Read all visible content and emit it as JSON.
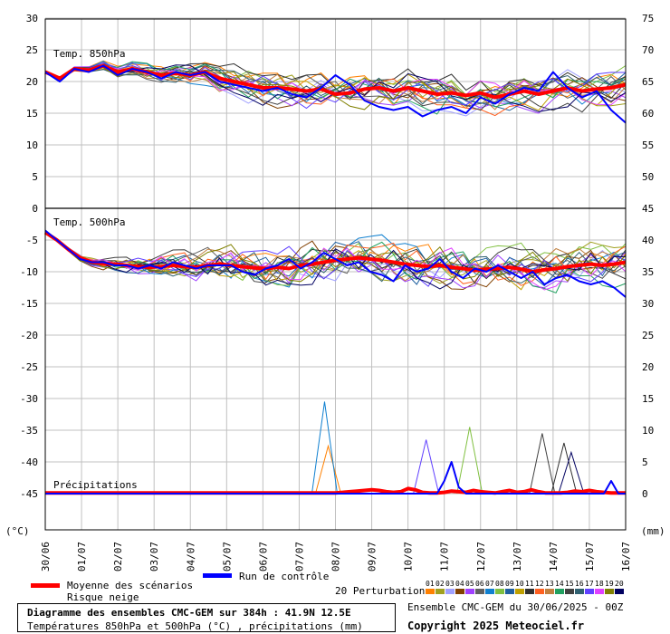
{
  "chart_data": {
    "type": "line",
    "title": "Diagramme des ensembles CMC-GEM sur 384h : 41.9N 12.5E",
    "subtitle": "Températures 850hPa et 500hPa (°C) , précipitations (mm)",
    "run_info": "Ensemble CMC-GEM du 30/06/2025 - 00Z",
    "copyright": "Copyright 2025 Meteociel.fr",
    "left_unit": "(°C)",
    "right_unit": "(mm)",
    "left_ticks": [
      30,
      25,
      20,
      15,
      10,
      5,
      0,
      -5,
      -10,
      -15,
      -20,
      -25,
      -30,
      -35,
      -40,
      -45
    ],
    "right_ticks_upper": [
      75,
      70,
      65,
      60,
      55,
      50,
      45
    ],
    "right_ticks_lower": [
      40,
      35,
      30,
      25,
      20,
      15,
      10,
      5,
      0
    ],
    "x_labels": [
      "30/06",
      "01/07",
      "02/07",
      "03/07",
      "04/07",
      "05/07",
      "06/07",
      "07/07",
      "08/07",
      "09/07",
      "10/07",
      "11/07",
      "12/07",
      "13/07",
      "14/07",
      "15/07",
      "16/07"
    ],
    "panel_labels": [
      "Temp. 850hPa",
      "Temp. 500hPa",
      "Précipitations"
    ],
    "legend": {
      "mean": "Moyenne des scénarios",
      "snow": "Risque neige",
      "control": "Run de contrôle",
      "perturbations": "20 Perturbations",
      "pert_numbers": [
        "01",
        "02",
        "03",
        "04",
        "05",
        "06",
        "07",
        "08",
        "09",
        "10",
        "11",
        "12",
        "13",
        "14",
        "15",
        "16",
        "17",
        "18",
        "19",
        "20"
      ]
    },
    "colors": {
      "mean": "#ff0000",
      "control": "#0000ff",
      "grid": "#c0c0c0",
      "perturbations": [
        "#ff8000",
        "#a0a020",
        "#a0a0ff",
        "#804000",
        "#a040ff",
        "#606060",
        "#1080d0",
        "#80c040",
        "#2060a0",
        "#c0a000",
        "#303030",
        "#ff6020",
        "#c08040",
        "#20a060",
        "#404040",
        "#306070",
        "#6040ff",
        "#e040ff",
        "#808000",
        "#000060"
      ]
    },
    "series": [
      {
        "name": "Moyenne des scénarios",
        "panel": "t850",
        "values": [
          21.5,
          20.5,
          22.0,
          21.8,
          22.5,
          21.5,
          22.0,
          21.5,
          21.0,
          21.3,
          21.0,
          21.5,
          20.5,
          20.0,
          19.5,
          19.0,
          19.0,
          18.8,
          18.5,
          18.8,
          18.0,
          18.2,
          18.8,
          19.0,
          18.5,
          19.0,
          18.5,
          18.0,
          18.2,
          17.8,
          18.2,
          17.5,
          18.0,
          18.5,
          18.0,
          18.5,
          19.0,
          18.5,
          18.8,
          19.0,
          19.5
        ]
      },
      {
        "name": "Run de contrôle",
        "panel": "t850",
        "values": [
          21.5,
          20.0,
          22.0,
          21.5,
          22.5,
          21.0,
          22.0,
          21.5,
          20.5,
          21.5,
          21.0,
          21.5,
          20.0,
          19.5,
          19.0,
          18.5,
          19.0,
          18.0,
          17.5,
          19.0,
          21.0,
          19.5,
          17.0,
          16.0,
          15.5,
          16.0,
          14.5,
          15.5,
          16.0,
          15.0,
          17.5,
          16.5,
          18.0,
          19.0,
          18.5,
          21.5,
          19.0,
          17.5,
          18.5,
          15.5,
          13.5
        ]
      },
      {
        "name": "Moyenne des scénarios",
        "panel": "t500",
        "values": [
          -3.8,
          -5.0,
          -6.5,
          -7.8,
          -8.5,
          -8.7,
          -8.8,
          -9.0,
          -9.2,
          -9.3,
          -9.2,
          -9.0,
          -9.2,
          -9.3,
          -9.0,
          -8.8,
          -9.0,
          -9.2,
          -9.4,
          -9.5,
          -9.3,
          -9.5,
          -9.0,
          -8.8,
          -8.5,
          -8.2,
          -8.0,
          -7.8,
          -8.0,
          -8.2,
          -8.5,
          -8.8,
          -9.0,
          -9.2,
          -9.0,
          -9.3,
          -9.5,
          -9.8,
          -9.6,
          -9.5,
          -9.3,
          -9.6,
          -10.0,
          -9.7,
          -9.5,
          -9.2,
          -9.0,
          -8.8,
          -9.0,
          -8.8,
          -8.5
        ]
      },
      {
        "name": "Run de contrôle",
        "panel": "t500",
        "values": [
          -3.5,
          -5.0,
          -6.5,
          -8.0,
          -8.5,
          -8.5,
          -9.0,
          -9.0,
          -9.5,
          -9.0,
          -9.5,
          -8.5,
          -9.0,
          -9.5,
          -9.0,
          -9.0,
          -9.0,
          -10.0,
          -10.5,
          -9.5,
          -9.0,
          -8.0,
          -9.5,
          -8.5,
          -7.0,
          -8.0,
          -9.0,
          -8.5,
          -10.0,
          -10.5,
          -11.5,
          -9.0,
          -10.0,
          -9.5,
          -8.0,
          -10.0,
          -11.0,
          -9.5,
          -10.0,
          -9.0,
          -10.0,
          -11.0,
          -10.0,
          -12.0,
          -11.0,
          -10.5,
          -11.5,
          -12.0,
          -11.5,
          -12.5,
          -14.0
        ]
      },
      {
        "name": "Moyenne des scénarios",
        "panel": "precip",
        "values": [
          0.1,
          0.1,
          0.1,
          0.1,
          0.1,
          0.1,
          0.1,
          0.1,
          0.1,
          0.1,
          0.1,
          0.1,
          0.1,
          0.1,
          0.1,
          0.1,
          0.1,
          0.1,
          0.1,
          0.1,
          0.1,
          0.1,
          0.1,
          0.1,
          0.1,
          0.1,
          0.1,
          0.1,
          0.1,
          0.1,
          0.1,
          0.1,
          0.1,
          0.1,
          0.1,
          0.1,
          0.1,
          0.1,
          0.1,
          0.1,
          0.1,
          0.2,
          0.3,
          0.4,
          0.5,
          0.6,
          0.5,
          0.3,
          0.2,
          0.3,
          0.8,
          0.6,
          0.2,
          0.1,
          0.1,
          0.2,
          0.4,
          0.3,
          0.2,
          0.5,
          0.3,
          0.2,
          0.1,
          0.3,
          0.5,
          0.2,
          0.3,
          0.6,
          0.3,
          0.1,
          0.1,
          0.1,
          0.2,
          0.4,
          0.3,
          0.5,
          0.3,
          0.2,
          0.1,
          0.1,
          0.1
        ]
      },
      {
        "name": "Run de contrôle",
        "panel": "precip",
        "values": [
          0,
          0,
          0,
          0,
          0,
          0,
          0,
          0,
          0,
          0,
          0,
          0,
          0,
          0,
          0,
          0,
          0,
          0,
          0,
          0,
          0,
          0,
          0,
          0,
          0,
          0,
          0,
          0,
          0,
          0,
          0,
          0,
          0,
          0,
          0,
          0,
          0,
          0,
          0,
          0,
          0,
          0,
          0,
          0,
          0,
          0,
          0,
          0,
          0,
          0,
          0,
          0,
          0,
          0,
          0,
          2,
          5,
          1,
          0,
          0,
          0,
          0,
          0,
          0,
          0,
          0,
          0,
          0,
          0,
          0,
          0,
          0,
          0,
          0,
          0,
          0,
          0,
          0,
          2,
          0,
          0
        ]
      }
    ],
    "perturbation_peaks": [
      {
        "name": "01",
        "x": 7.8,
        "value": 7.5
      },
      {
        "name": "07",
        "x": 7.7,
        "value": 14.5
      },
      {
        "name": "17",
        "x": 10.5,
        "value": 8.5
      },
      {
        "name": "08",
        "x": 11.7,
        "value": 10.5
      },
      {
        "name": "15",
        "x": 13.7,
        "value": 9.5
      },
      {
        "name": "11",
        "x": 14.3,
        "value": 8.0
      },
      {
        "name": "20",
        "x": 14.5,
        "value": 6.5
      }
    ]
  }
}
